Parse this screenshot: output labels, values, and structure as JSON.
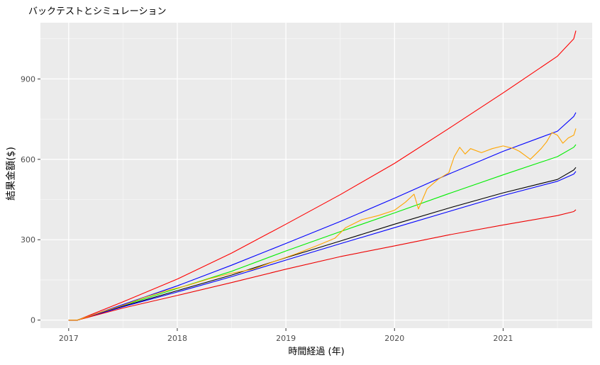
{
  "chart_data": {
    "type": "line",
    "title": "バックテストとシミュレーション",
    "xlabel": "時間経過 (年)",
    "ylabel": "結果金額($)",
    "x_ticks": [
      "2017",
      "2018",
      "2019",
      "2020",
      "2021"
    ],
    "y_ticks": [
      0,
      300,
      600,
      900
    ],
    "xlim": [
      2016.74,
      2021.82
    ],
    "ylim": [
      -30,
      1110
    ],
    "grid": true,
    "legend": "none",
    "series": [
      {
        "color": "#ff0000",
        "style": "upper-bound",
        "x": [
          2017.0,
          2017.08,
          2017.5,
          2018.0,
          2018.5,
          2019.0,
          2019.5,
          2020.0,
          2020.5,
          2021.0,
          2021.5,
          2021.65,
          2021.67
        ],
        "y": [
          0,
          0,
          68,
          153,
          250,
          358,
          468,
          585,
          715,
          848,
          985,
          1050,
          1080
        ]
      },
      {
        "color": "#0000ff",
        "style": "upper",
        "x": [
          2017.0,
          2017.08,
          2017.5,
          2018.0,
          2018.5,
          2019.0,
          2019.5,
          2020.0,
          2020.5,
          2021.0,
          2021.5,
          2021.65,
          2021.67
        ],
        "y": [
          0,
          0,
          58,
          128,
          205,
          286,
          368,
          455,
          545,
          630,
          705,
          760,
          775
        ]
      },
      {
        "color": "#00ee00",
        "style": "mid-upper",
        "x": [
          2017.0,
          2017.08,
          2017.5,
          2018.0,
          2018.5,
          2019.0,
          2019.5,
          2020.0,
          2020.5,
          2021.0,
          2021.5,
          2021.65,
          2021.67
        ],
        "y": [
          0,
          0,
          55,
          118,
          182,
          258,
          330,
          400,
          472,
          542,
          610,
          645,
          655
        ]
      },
      {
        "color": "#000000",
        "style": "median",
        "x": [
          2017.0,
          2017.08,
          2017.5,
          2018.0,
          2018.5,
          2019.0,
          2019.5,
          2020.0,
          2020.5,
          2021.0,
          2021.5,
          2021.65,
          2021.67
        ],
        "y": [
          0,
          0,
          52,
          110,
          168,
          233,
          295,
          358,
          418,
          475,
          525,
          560,
          570
        ]
      },
      {
        "color": "#0000ff",
        "style": "lower",
        "x": [
          2017.0,
          2017.08,
          2017.5,
          2018.0,
          2018.5,
          2019.0,
          2019.5,
          2020.0,
          2020.5,
          2021.0,
          2021.5,
          2021.65,
          2021.67
        ],
        "y": [
          0,
          0,
          50,
          105,
          162,
          224,
          285,
          345,
          405,
          465,
          518,
          545,
          555
        ]
      },
      {
        "color": "#ee0000",
        "style": "lower-bound",
        "x": [
          2017.0,
          2017.08,
          2017.5,
          2018.0,
          2018.5,
          2019.0,
          2019.5,
          2020.0,
          2020.5,
          2021.0,
          2021.5,
          2021.65,
          2021.67
        ],
        "y": [
          0,
          0,
          45,
          92,
          140,
          190,
          237,
          277,
          318,
          355,
          390,
          405,
          412
        ]
      },
      {
        "color": "#ffa500",
        "style": "backtest",
        "x": [
          2017.0,
          2017.08,
          2017.3,
          2017.5,
          2017.7,
          2017.9,
          2018.1,
          2018.3,
          2018.5,
          2018.7,
          2018.9,
          2019.1,
          2019.3,
          2019.45,
          2019.55,
          2019.7,
          2019.85,
          2020.0,
          2020.1,
          2020.18,
          2020.22,
          2020.3,
          2020.4,
          2020.5,
          2020.55,
          2020.6,
          2020.65,
          2020.7,
          2020.8,
          2020.9,
          2021.0,
          2021.1,
          2021.15,
          2021.2,
          2021.25,
          2021.3,
          2021.35,
          2021.4,
          2021.45,
          2021.5,
          2021.55,
          2021.6,
          2021.65,
          2021.67
        ],
        "y": [
          0,
          0,
          30,
          55,
          85,
          110,
          130,
          155,
          175,
          190,
          220,
          248,
          280,
          305,
          345,
          375,
          390,
          410,
          440,
          470,
          415,
          490,
          525,
          550,
          610,
          645,
          620,
          640,
          625,
          640,
          650,
          640,
          630,
          615,
          600,
          620,
          640,
          665,
          700,
          690,
          660,
          680,
          690,
          715
        ]
      }
    ]
  }
}
